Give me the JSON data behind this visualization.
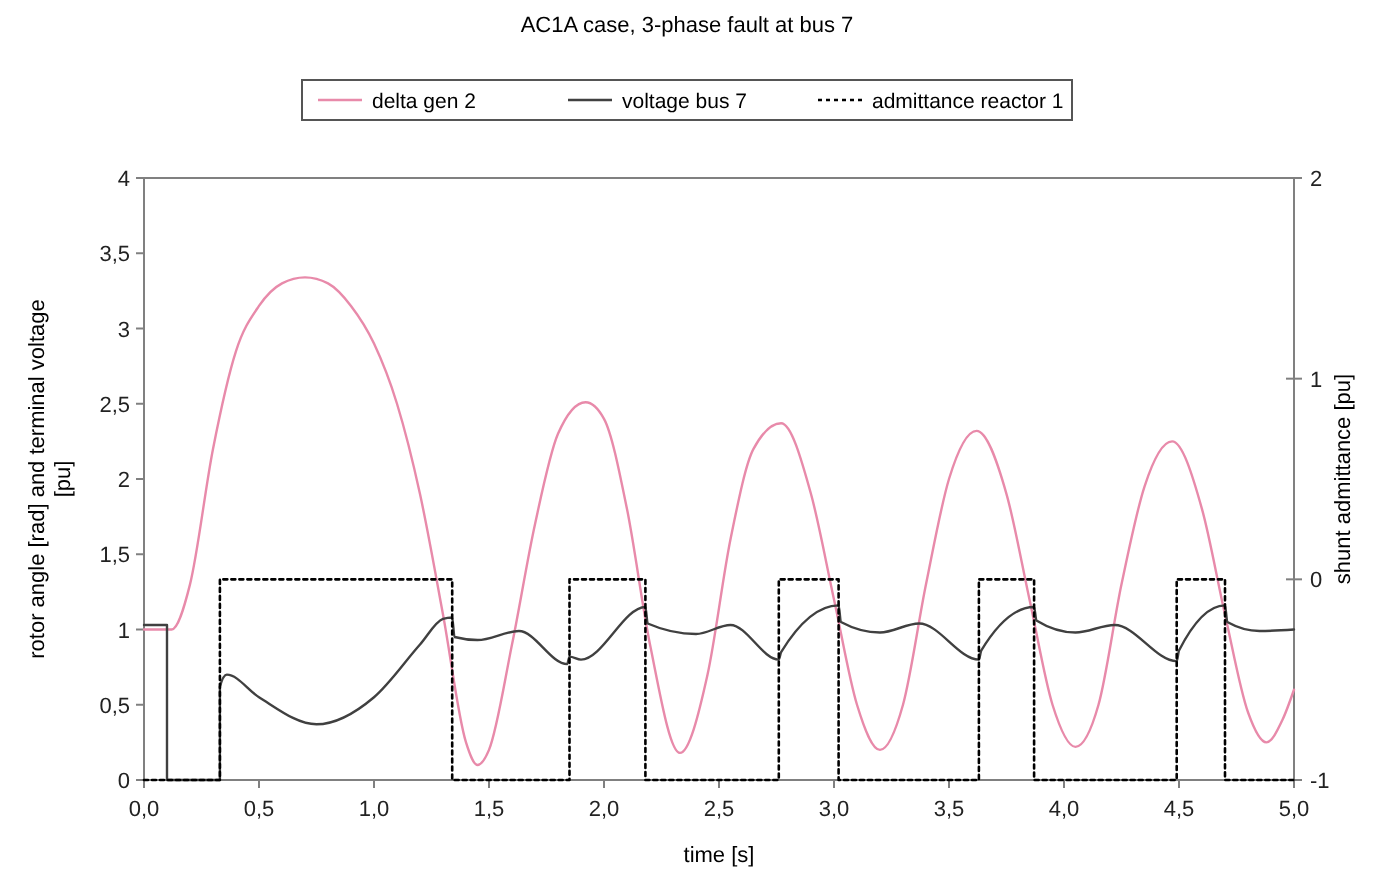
{
  "chart_data": {
    "type": "line",
    "title": "AC1A case, 3-phase fault at bus 7",
    "xlabel": "time [s]",
    "ylabel": "rotor angle [rad] and terminal voltage [pu]",
    "y2label": "shunt admittance [pu]",
    "legend": "top",
    "grid": false,
    "xlim": [
      0,
      5
    ],
    "xticks": [
      {
        "value": 0,
        "label": "0,0"
      },
      {
        "value": 0.5,
        "label": "0,5"
      },
      {
        "value": 1,
        "label": "1,0"
      },
      {
        "value": 1.5,
        "label": "1,5"
      },
      {
        "value": 2,
        "label": "2,0"
      },
      {
        "value": 2.5,
        "label": "2,5"
      },
      {
        "value": 3,
        "label": "3,0"
      },
      {
        "value": 3.5,
        "label": "3,5"
      },
      {
        "value": 4,
        "label": "4,0"
      },
      {
        "value": 4.5,
        "label": "4,5"
      },
      {
        "value": 5,
        "label": "5,0"
      }
    ],
    "ylim": [
      0,
      4
    ],
    "yticks": [
      0,
      {
        "value": 0.5,
        "label": "0,5"
      },
      1,
      {
        "value": 1.5,
        "label": "1,5"
      },
      2,
      {
        "value": 2.5,
        "label": "2,5"
      },
      3,
      {
        "value": 3.5,
        "label": "3,5"
      },
      4
    ],
    "y2lim": [
      -1,
      2
    ],
    "y2ticks": [
      -1,
      0,
      1,
      2
    ],
    "series": [
      {
        "name": "delta gen 2",
        "color": "#e88aaa",
        "line_style": "solid",
        "x": [
          0,
          0.12,
          0.2,
          0.3,
          0.4,
          0.5,
          0.6,
          0.7,
          0.8,
          0.9,
          1.0,
          1.1,
          1.2,
          1.3,
          1.4,
          1.45,
          1.5,
          1.6,
          1.7,
          1.8,
          1.92,
          2.0,
          2.1,
          2.2,
          2.33,
          2.45,
          2.55,
          2.65,
          2.77,
          2.9,
          3.0,
          3.1,
          3.2,
          3.3,
          3.4,
          3.5,
          3.62,
          3.75,
          3.85,
          3.95,
          4.05,
          4.15,
          4.25,
          4.35,
          4.47,
          4.6,
          4.7,
          4.8,
          4.88,
          4.95,
          5.0
        ],
        "values": [
          1.0,
          1.0,
          1.3,
          2.2,
          2.85,
          3.15,
          3.3,
          3.34,
          3.3,
          3.15,
          2.9,
          2.5,
          1.9,
          1.1,
          0.25,
          0.1,
          0.2,
          0.9,
          1.7,
          2.3,
          2.51,
          2.4,
          1.8,
          0.9,
          0.18,
          0.7,
          1.6,
          2.2,
          2.37,
          1.9,
          1.2,
          0.5,
          0.2,
          0.5,
          1.3,
          2.0,
          2.32,
          1.9,
          1.2,
          0.5,
          0.22,
          0.5,
          1.3,
          1.95,
          2.25,
          1.8,
          1.1,
          0.45,
          0.25,
          0.4,
          0.6
        ]
      },
      {
        "name": "voltage bus 7",
        "color": "#404040",
        "line_style": "solid",
        "x": [
          0,
          0.1,
          0.1,
          0.33,
          0.33,
          0.36,
          0.5,
          0.75,
          1.0,
          1.2,
          1.3,
          1.34,
          1.35,
          1.45,
          1.63,
          1.84,
          1.85,
          1.9,
          2.18,
          2.19,
          2.4,
          2.55,
          2.76,
          2.77,
          3.02,
          3.03,
          3.2,
          3.37,
          3.63,
          3.64,
          3.87,
          3.88,
          4.05,
          4.22,
          4.49,
          4.5,
          4.7,
          4.71,
          4.85,
          5.0
        ],
        "values": [
          1.03,
          1.03,
          0,
          0,
          0.62,
          0.7,
          0.55,
          0.37,
          0.55,
          0.9,
          1.07,
          1.08,
          0.95,
          0.93,
          0.99,
          0.77,
          0.82,
          0.8,
          1.15,
          1.04,
          0.97,
          1.03,
          0.8,
          0.85,
          1.16,
          1.05,
          0.98,
          1.04,
          0.8,
          0.86,
          1.15,
          1.06,
          0.98,
          1.03,
          0.79,
          0.86,
          1.16,
          1.05,
          0.99,
          1.0
        ]
      },
      {
        "name": "admittance reactor 1",
        "type": "step",
        "axis": "y2",
        "color": "#000000",
        "line_style": "dotted",
        "x": [
          0,
          0.33,
          1.34,
          1.85,
          2.18,
          2.76,
          3.02,
          3.63,
          3.87,
          4.49,
          4.7,
          5.0
        ],
        "values": [
          -1,
          0,
          -1,
          0,
          -1,
          0,
          -1,
          0,
          -1,
          0,
          -1,
          -1
        ]
      }
    ]
  }
}
